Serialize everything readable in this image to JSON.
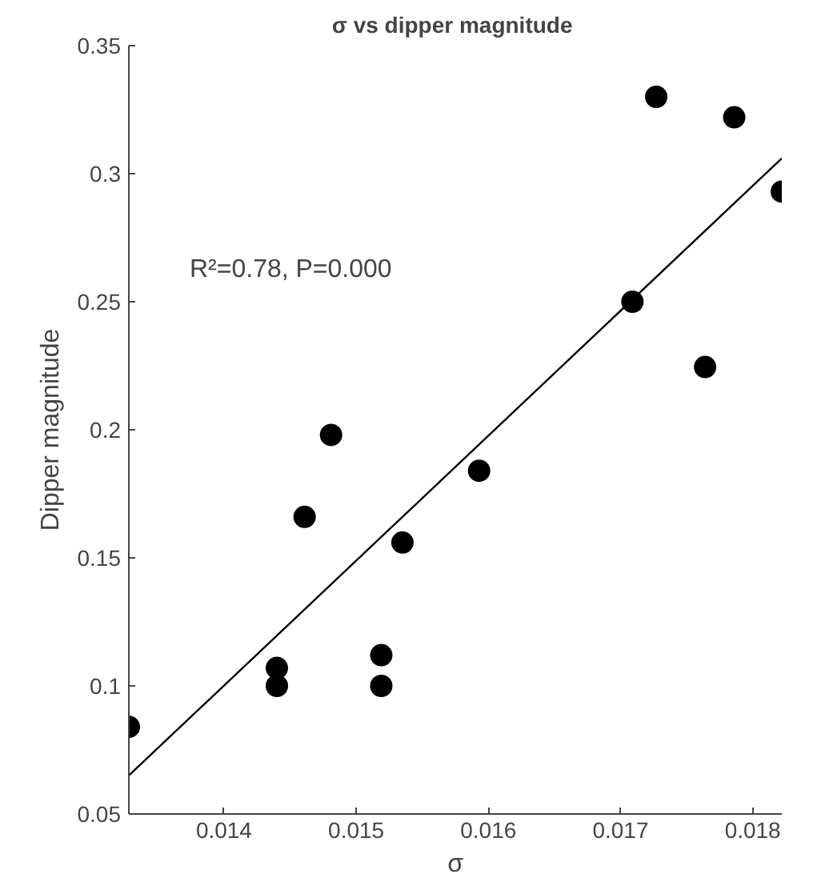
{
  "chart_data": {
    "type": "scatter",
    "title": "σ  vs dipper magnitude",
    "xlabel": "σ",
    "ylabel": "Dipper magnitude",
    "xlim": [
      0.01328,
      0.01822
    ],
    "ylim": [
      0.05,
      0.35
    ],
    "xticks": [
      0.014,
      0.015,
      0.016,
      0.017,
      0.018
    ],
    "yticks": [
      0.05,
      0.1,
      0.15,
      0.2,
      0.25,
      0.3,
      0.35
    ],
    "grid": false,
    "marker": "circle",
    "series": [
      {
        "color": "#000000",
        "x": [
          0.01328,
          0.0144,
          0.0144,
          0.01461,
          0.01481,
          0.01519,
          0.01519,
          0.01535,
          0.01593,
          0.01709,
          0.01727,
          0.01764,
          0.01786,
          0.01822
        ],
        "values": [
          0.084,
          0.107,
          0.1,
          0.166,
          0.198,
          0.112,
          0.1,
          0.156,
          0.184,
          0.25,
          0.33,
          0.2245,
          0.322,
          0.293
        ]
      },
      {
        "type": "line",
        "color": "#000000",
        "x": [
          0.01328,
          0.01822
        ],
        "values": [
          0.065,
          0.306
        ],
        "marker": "none"
      }
    ],
    "annotations": [
      "R²=0.78, P=0.000"
    ]
  }
}
